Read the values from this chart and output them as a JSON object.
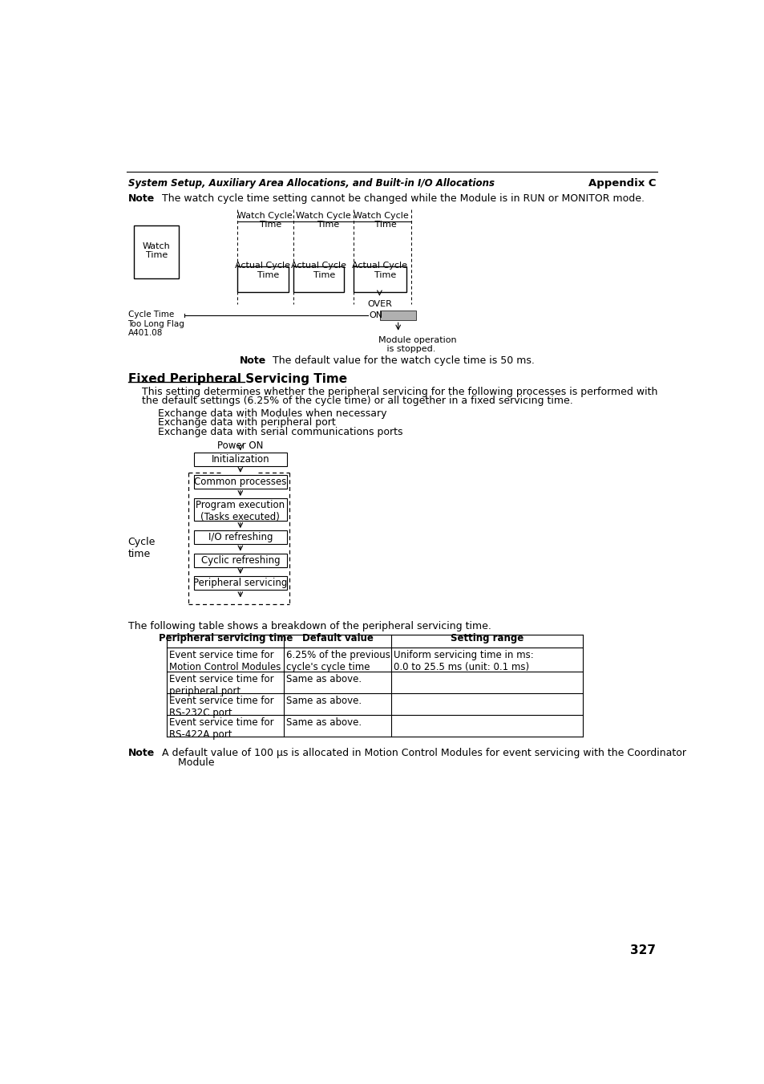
{
  "header_left": "System Setup, Auxiliary Area Allocations, and Built-in I/O Allocations",
  "header_right": "Appendix C",
  "note1_bold": "Note",
  "note1_text": "  The watch cycle time setting cannot be changed while the Module is in RUN or MONITOR mode.",
  "section_title": "Fixed Peripheral Servicing Time",
  "para1_line1": "This setting determines whether the peripheral servicing for the following processes is performed with",
  "para1_line2": "the default settings (6.25% of the cycle time) or all together in a fixed servicing time.",
  "bullets": [
    "Exchange data with Modules when necessary",
    "Exchange data with peripheral port",
    "Exchange data with serial communications ports"
  ],
  "table_intro": "The following table shows a breakdown of the peripheral servicing time.",
  "table_headers": [
    "Peripheral servicing time",
    "Default value",
    "Setting range"
  ],
  "table_rows": [
    [
      "Event service time for\nMotion Control Modules",
      "6.25% of the previous\ncycle's cycle time",
      "Uniform servicing time in ms:\n0.0 to 25.5 ms (unit: 0.1 ms)"
    ],
    [
      "Event service time for\nperipheral port",
      "Same as above.",
      ""
    ],
    [
      "Event service time for\nRS-232C port",
      "Same as above.",
      ""
    ],
    [
      "Event service time for\nRS-422A port",
      "Same as above.",
      ""
    ]
  ],
  "note2_bold": "Note",
  "note2_text": "  A default value of 100 μs is allocated in Motion Control Modules for event servicing with the Coordinator",
  "note2_line2": "       Module",
  "note_default_bold": "Note",
  "note_default_text": "  The default value for the watch cycle time is 50 ms.",
  "page_number": "327",
  "bg_color": "#ffffff",
  "text_color": "#000000"
}
